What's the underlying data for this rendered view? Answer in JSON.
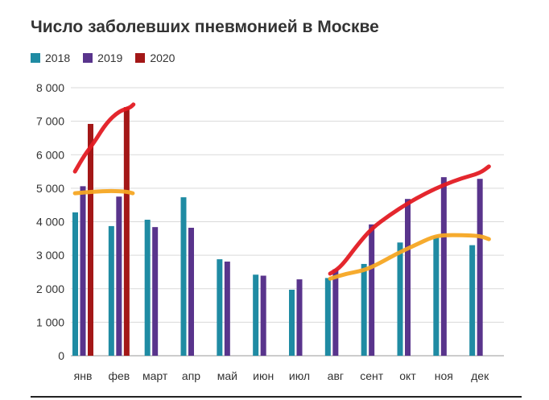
{
  "chart_data": {
    "type": "bar",
    "title": "Число заболевших пневмонией в Москве",
    "xlabel": "",
    "ylabel": "",
    "ylim": [
      0,
      8000
    ],
    "yticks": [
      0,
      1000,
      2000,
      3000,
      4000,
      5000,
      6000,
      7000,
      8000
    ],
    "ytick_labels": [
      "0",
      "1 000",
      "2 000",
      "3 000",
      "4 000",
      "5 000",
      "6 000",
      "7 000",
      "8 000"
    ],
    "categories": [
      "янв",
      "фев",
      "март",
      "апр",
      "май",
      "июн",
      "июл",
      "авг",
      "сент",
      "окт",
      "ноя",
      "дек"
    ],
    "grid": true,
    "legend_position": "top-left",
    "series": [
      {
        "name": "2018",
        "color": "#1f8ba3",
        "values": [
          4280,
          3870,
          4060,
          4730,
          2880,
          2420,
          1970,
          2320,
          2740,
          3380,
          3560,
          3300
        ]
      },
      {
        "name": "2019",
        "color": "#59348c",
        "values": [
          5060,
          4750,
          3840,
          3820,
          2810,
          2390,
          2280,
          2580,
          3920,
          4680,
          5330,
          5280
        ]
      },
      {
        "name": "2020",
        "color": "#a31717",
        "values": [
          6920,
          7420,
          null,
          null,
          null,
          null,
          null,
          null,
          null,
          null,
          null,
          null
        ]
      }
    ],
    "annotations": [
      {
        "color": "#e31b23",
        "description": "hand-drawn red curve over the tops of the 2020 bars",
        "points": [
          [
            -0.22,
            5500
          ],
          [
            0.05,
            6000
          ],
          [
            0.3,
            6350
          ],
          [
            0.65,
            6950
          ],
          [
            1.0,
            7300
          ],
          [
            1.3,
            7400
          ],
          [
            1.4,
            7500
          ]
        ]
      },
      {
        "color": "#f5a623",
        "description": "hand-drawn orange line across the 2018 level in January–February",
        "points": [
          [
            -0.22,
            4850
          ],
          [
            0.3,
            4900
          ],
          [
            0.8,
            4920
          ],
          [
            1.2,
            4900
          ],
          [
            1.38,
            4850
          ]
        ]
      },
      {
        "color": "#e31b23",
        "description": "hand-drawn red curve over the 2019 bars August–December",
        "points": [
          [
            6.85,
            2450
          ],
          [
            7.15,
            2650
          ],
          [
            7.6,
            3300
          ],
          [
            8.0,
            3800
          ],
          [
            8.5,
            4200
          ],
          [
            9.0,
            4550
          ],
          [
            9.5,
            4850
          ],
          [
            10.0,
            5100
          ],
          [
            10.5,
            5300
          ],
          [
            11.0,
            5450
          ],
          [
            11.25,
            5650
          ]
        ]
      },
      {
        "color": "#f5a623",
        "description": "hand-drawn orange curve over the 2018 bars August–December",
        "points": [
          [
            6.85,
            2300
          ],
          [
            7.3,
            2450
          ],
          [
            7.8,
            2550
          ],
          [
            8.2,
            2750
          ],
          [
            8.7,
            3050
          ],
          [
            9.2,
            3300
          ],
          [
            9.7,
            3550
          ],
          [
            10.0,
            3600
          ],
          [
            10.5,
            3600
          ],
          [
            11.0,
            3580
          ],
          [
            11.25,
            3480
          ]
        ]
      }
    ]
  }
}
